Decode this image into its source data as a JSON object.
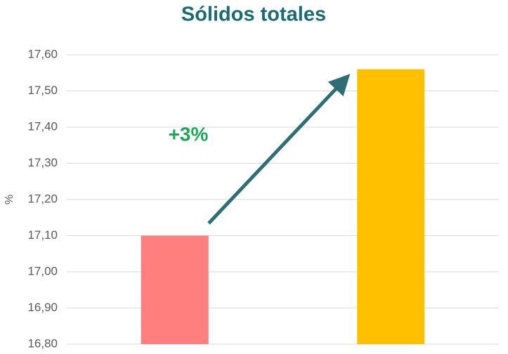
{
  "chart_data": {
    "type": "bar",
    "title": "Sólidos totales",
    "y_label": "%",
    "annotation": "+3%",
    "categories": [
      null,
      null
    ],
    "values": [
      17.1,
      17.56
    ],
    "colors": [
      "#ff7f7f",
      "#ffc000"
    ],
    "ylim": [
      16.8,
      17.6
    ],
    "yticks": [
      {
        "value": 16.8,
        "label": "16,80"
      },
      {
        "value": 16.9,
        "label": "16,90"
      },
      {
        "value": 17.0,
        "label": "17,00"
      },
      {
        "value": 17.1,
        "label": "17,10"
      },
      {
        "value": 17.2,
        "label": "17,20"
      },
      {
        "value": 17.3,
        "label": "17,30"
      },
      {
        "value": 17.4,
        "label": "17,40"
      },
      {
        "value": 17.5,
        "label": "17,50"
      },
      {
        "value": 17.6,
        "label": "17,60"
      }
    ],
    "grid": true
  }
}
